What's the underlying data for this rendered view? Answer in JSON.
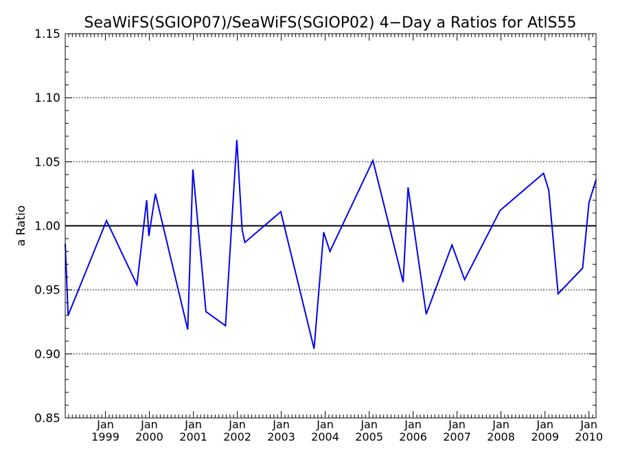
{
  "chart_data": {
    "type": "line",
    "title": "SeaWiFS(SGIOP07)/SeaWiFS(SGIOP02) 4−Day a Ratios for AtlS55",
    "xlabel": "",
    "ylabel": "a Ratio",
    "xlim": [
      "1998-02-01",
      "2010-03-01"
    ],
    "ylim": [
      0.85,
      1.15
    ],
    "y_ticks": [
      0.85,
      0.9,
      0.95,
      1.0,
      1.05,
      1.1,
      1.15
    ],
    "y_tick_labels": [
      "0.85",
      "0.90",
      "0.95",
      "1.00",
      "1.05",
      "1.10",
      "1.15"
    ],
    "x_ticks": [
      "1999-01-01",
      "2000-01-01",
      "2001-01-01",
      "2002-01-01",
      "2003-01-01",
      "2004-01-01",
      "2005-01-01",
      "2006-01-01",
      "2007-01-01",
      "2008-01-01",
      "2009-01-01",
      "2010-01-01"
    ],
    "x_tick_labels": [
      {
        "month": "Jan",
        "year": "1999"
      },
      {
        "month": "Jan",
        "year": "2000"
      },
      {
        "month": "Jan",
        "year": "2001"
      },
      {
        "month": "Jan",
        "year": "2002"
      },
      {
        "month": "Jan",
        "year": "2003"
      },
      {
        "month": "Jan",
        "year": "2004"
      },
      {
        "month": "Jan",
        "year": "2005"
      },
      {
        "month": "Jan",
        "year": "2006"
      },
      {
        "month": "Jan",
        "year": "2007"
      },
      {
        "month": "Jan",
        "year": "2008"
      },
      {
        "month": "Jan",
        "year": "2009"
      },
      {
        "month": "Jan",
        "year": "2010"
      }
    ],
    "dotted_gridlines": [
      0.9,
      0.95,
      1.05,
      1.1
    ],
    "reference_line": 1.0,
    "series": [
      {
        "color": "#0000ee",
        "points": [
          {
            "x": "1998-02-01",
            "y": 0.986
          },
          {
            "x": "1998-02-25",
            "y": 0.93
          },
          {
            "x": "1999-01-10",
            "y": 1.004
          },
          {
            "x": "1999-09-20",
            "y": 0.954
          },
          {
            "x": "1999-12-10",
            "y": 1.02
          },
          {
            "x": "1999-12-28",
            "y": 0.992
          },
          {
            "x": "2000-02-20",
            "y": 1.025
          },
          {
            "x": "2000-11-15",
            "y": 0.919
          },
          {
            "x": "2000-12-28",
            "y": 1.044
          },
          {
            "x": "2001-04-15",
            "y": 0.933
          },
          {
            "x": "2001-09-25",
            "y": 0.922
          },
          {
            "x": "2001-12-28",
            "y": 1.067
          },
          {
            "x": "2002-02-10",
            "y": 0.997
          },
          {
            "x": "2002-03-05",
            "y": 0.987
          },
          {
            "x": "2002-12-28",
            "y": 1.011
          },
          {
            "x": "2003-10-01",
            "y": 0.904
          },
          {
            "x": "2003-12-20",
            "y": 0.995
          },
          {
            "x": "2004-02-10",
            "y": 0.98
          },
          {
            "x": "2005-02-01",
            "y": 1.051
          },
          {
            "x": "2005-10-10",
            "y": 0.956
          },
          {
            "x": "2005-11-20",
            "y": 1.03
          },
          {
            "x": "2006-01-20",
            "y": 0.99
          },
          {
            "x": "2006-04-20",
            "y": 0.931
          },
          {
            "x": "2006-11-20",
            "y": 0.985
          },
          {
            "x": "2007-03-05",
            "y": 0.958
          },
          {
            "x": "2007-12-25",
            "y": 1.012
          },
          {
            "x": "2008-12-20",
            "y": 1.041
          },
          {
            "x": "2009-02-01",
            "y": 1.028
          },
          {
            "x": "2009-04-20",
            "y": 0.947
          },
          {
            "x": "2009-11-10",
            "y": 0.967
          },
          {
            "x": "2010-01-01",
            "y": 1.018
          },
          {
            "x": "2010-03-01",
            "y": 1.036
          }
        ]
      }
    ],
    "grid": true,
    "legend": "none"
  }
}
